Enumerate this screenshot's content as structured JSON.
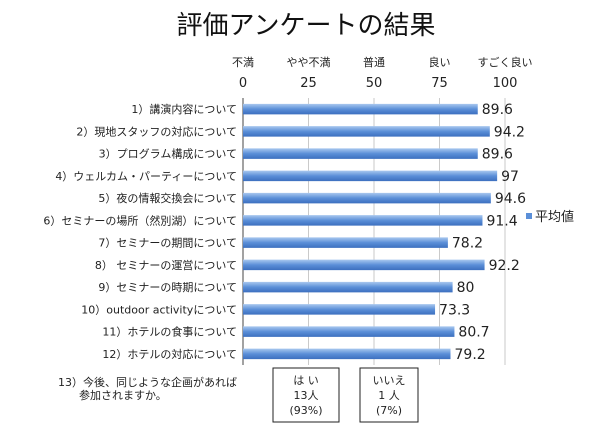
{
  "chart_data": {
    "type": "bar",
    "orientation": "horizontal",
    "title": "評価アンケートの結果",
    "categories": [
      "1）講演内容について",
      "2）現地スタッフの対応について",
      "3）プログラム構成について",
      "4）ウェルカム・パーティーについて",
      "5）夜の情報交換会について",
      "6）セミナーの場所（然別湖）について",
      "7）セミナーの期間について",
      "8） セミナーの運営について",
      "9）セミナーの時期について",
      "10）outdoor activityについて",
      "11）ホテルの食事について",
      "12）ホテルの対応について"
    ],
    "series": [
      {
        "name": "平均値",
        "values": [
          89.6,
          94.2,
          89.6,
          97,
          94.6,
          91.4,
          78.2,
          92.2,
          80,
          73.3,
          80.7,
          79.2
        ]
      }
    ],
    "value_labels": [
      "89.6",
      "94.2",
      "89.6",
      "97",
      "94.6",
      "91.4",
      "78.2",
      "92.2",
      "80",
      "73.3",
      "80.7",
      "79.2"
    ],
    "xlim": [
      0,
      100
    ],
    "ticks": [
      0,
      25,
      50,
      75,
      100
    ],
    "tick_labels": [
      "0",
      "25",
      "50",
      "75",
      "100"
    ],
    "scale_words": [
      "不満",
      "やや不満",
      "普通",
      "良い",
      "すごく良い"
    ],
    "legend_position": "right",
    "grid": true,
    "bar_color": "#5b8fd8"
  },
  "question13": {
    "text_lines": [
      "13）今後、同じような企画があれば",
      "参加されますか。"
    ],
    "answers": [
      {
        "lines": [
          "は い",
          "13人",
          "(93%)"
        ]
      },
      {
        "lines": [
          "いいえ",
          "1 人",
          "(7%)"
        ]
      }
    ]
  }
}
